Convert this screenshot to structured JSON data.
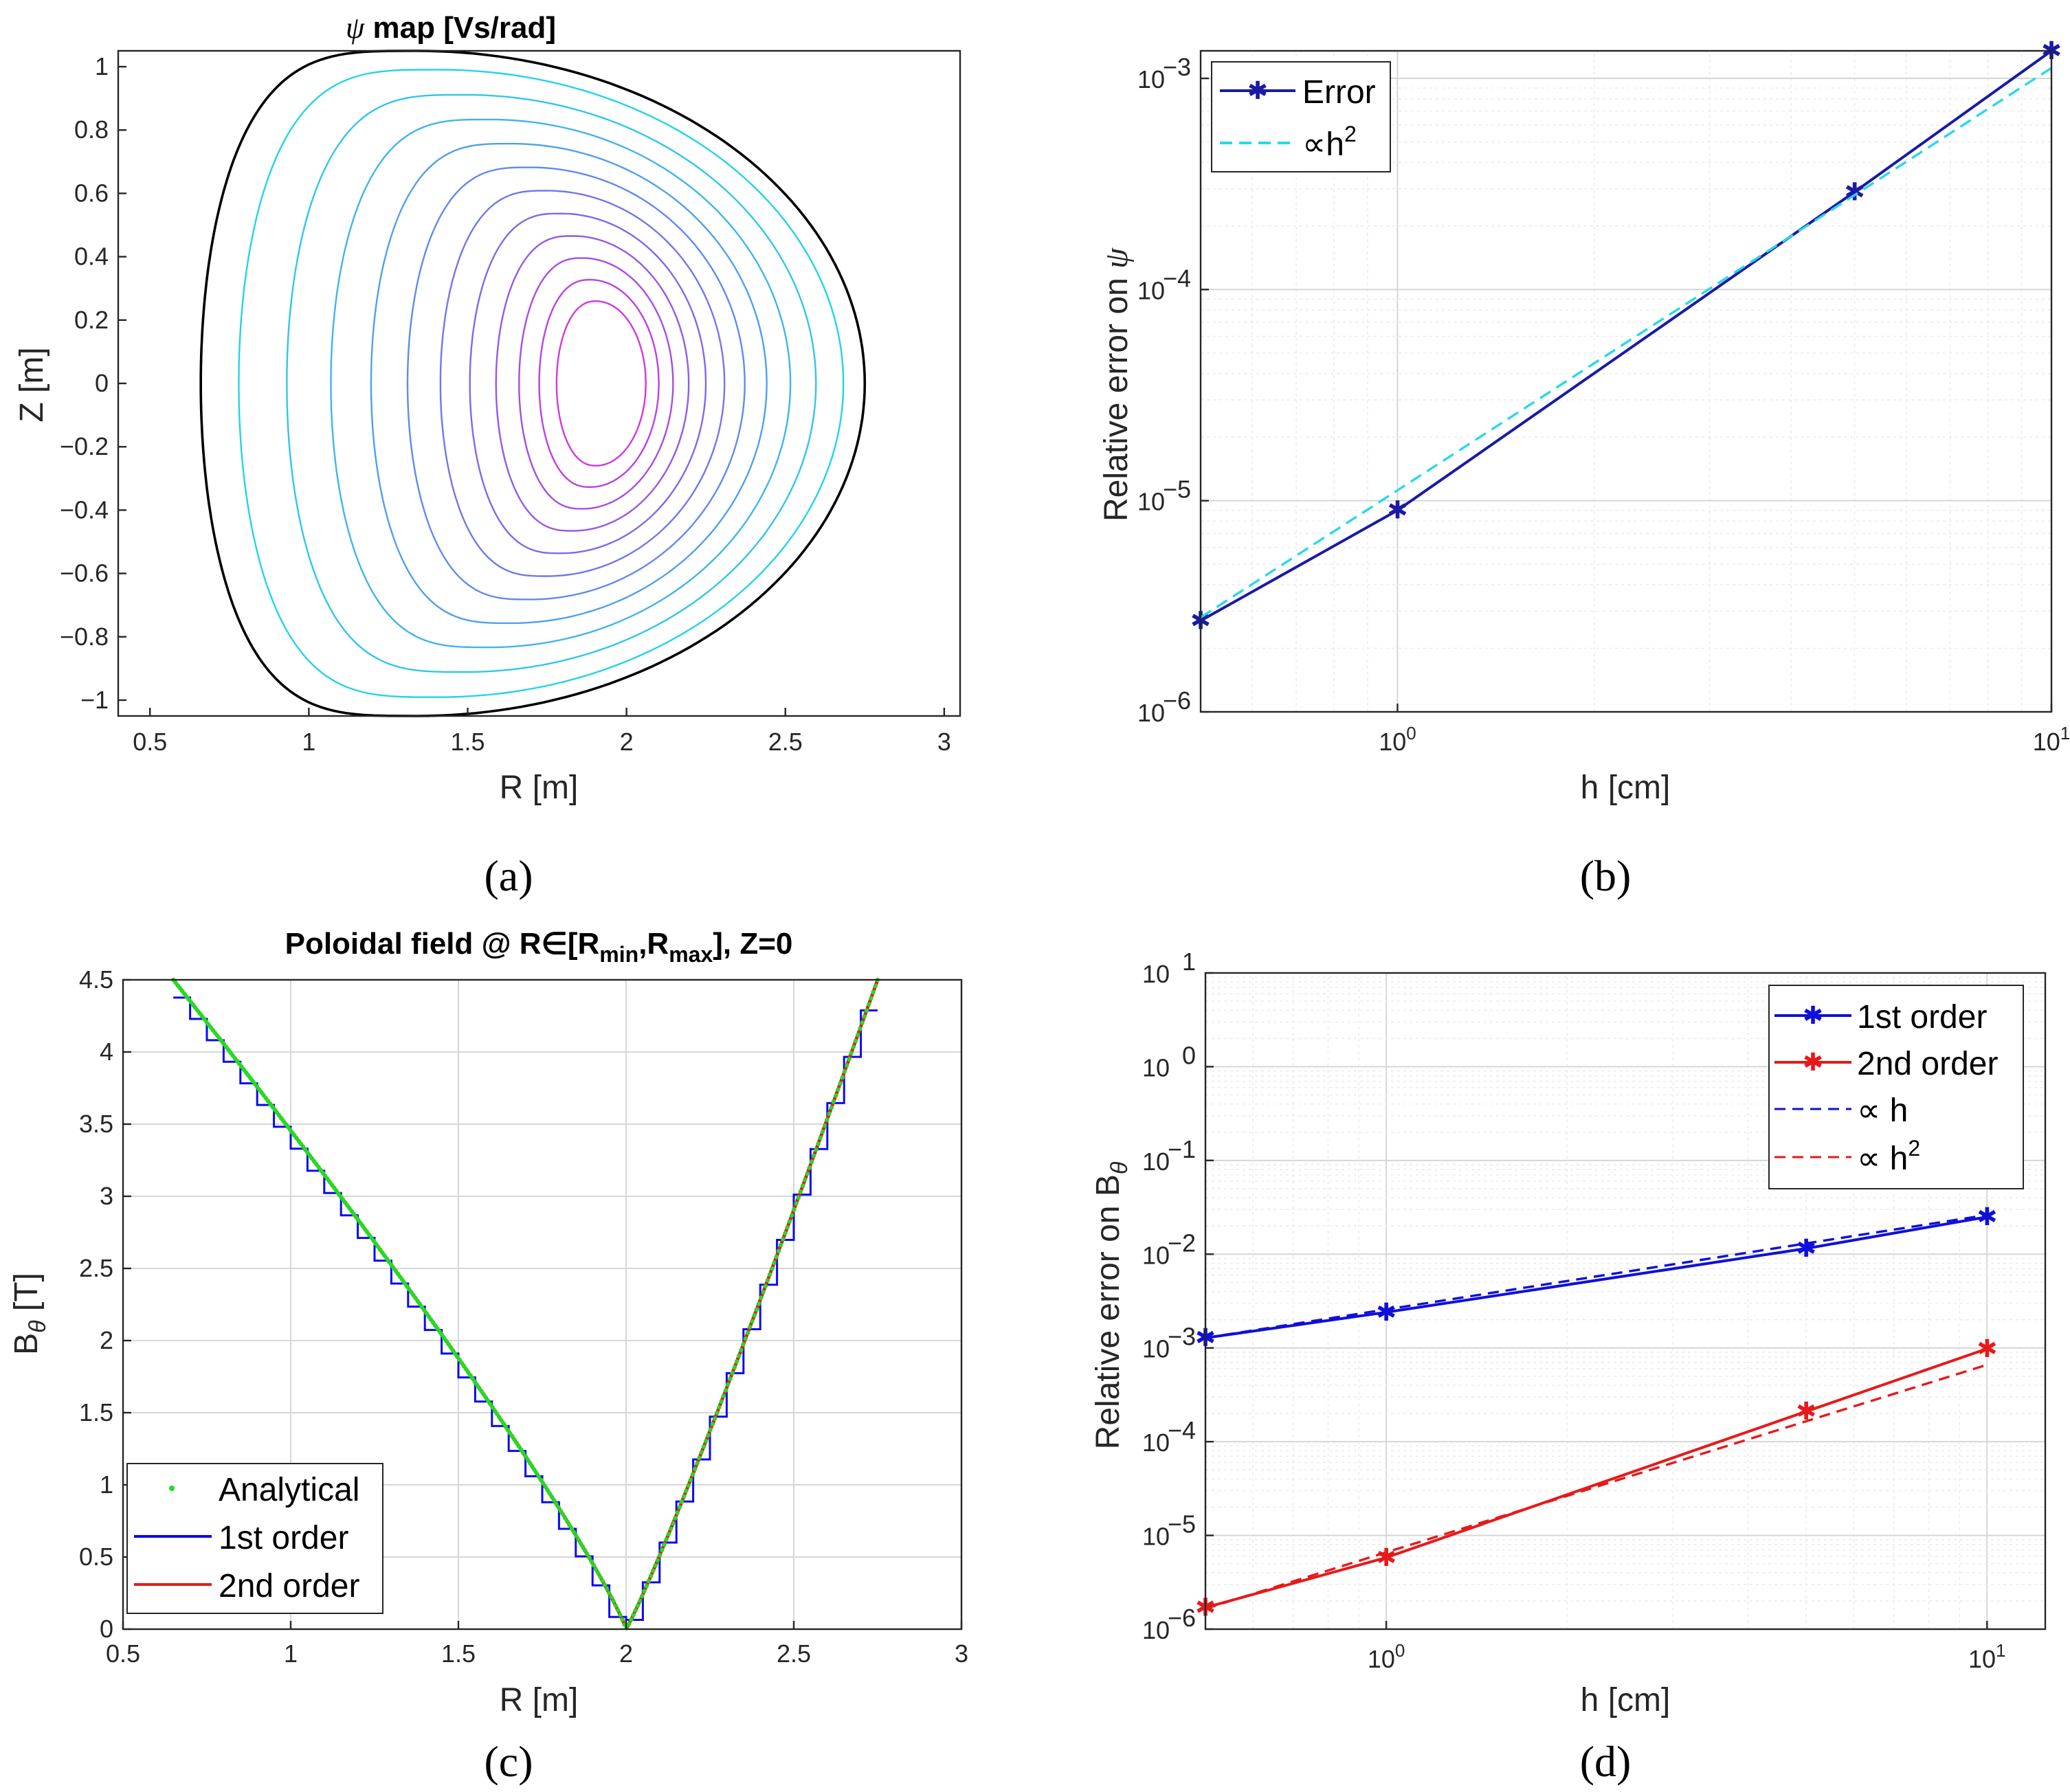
{
  "chart_data": [
    {
      "id": "a",
      "type": "contour",
      "panel_label": "(a)",
      "title_prefix": "ψ",
      "title": "map [Vs/rad]",
      "xlabel": "R [m]",
      "ylabel": "Z [m]",
      "xlim": [
        0.4,
        3.05
      ],
      "ylim": [
        -1.05,
        1.05
      ],
      "xticks": [
        0.5,
        1,
        1.5,
        2,
        2.5,
        3
      ],
      "xtick_labels": [
        "0.5",
        "1",
        "1.5",
        "2",
        "2.5",
        "3"
      ],
      "yticks": [
        -1,
        -0.8,
        -0.6,
        -0.4,
        -0.2,
        0,
        0.2,
        0.4,
        0.6,
        0.8,
        1
      ],
      "ytick_labels": [
        "−1",
        "−0.8",
        "−0.6",
        "−0.4",
        "−0.2",
        "0",
        "0.2",
        "0.4",
        "0.6",
        "0.8",
        "1"
      ],
      "boundary": {
        "r_inner": 0.66,
        "r_outer": 2.75,
        "r_top": 1.34,
        "z_top": 1.05,
        "r_bottom": 1.34,
        "z_bottom": -1.05
      },
      "axis_center": {
        "r": 1.93,
        "z": 0.0
      },
      "contour_levels": 11,
      "contour_colors": [
        "#22d4e6",
        "#30c6ea",
        "#40b4ec",
        "#509fee",
        "#608aee",
        "#7276ec",
        "#8466ea",
        "#9658e8",
        "#a84ce6",
        "#bc40e4",
        "#d238de"
      ]
    },
    {
      "id": "b",
      "type": "line",
      "scale": "loglog",
      "panel_label": "(b)",
      "xlabel": "h [cm]",
      "ylabel_prefix": "Relative error on",
      "ylabel_symbol": "ψ",
      "xlim": [
        0.5,
        10
      ],
      "ylim": [
        1e-06,
        0.00135
      ],
      "xticks": [
        1,
        10
      ],
      "xtick_bases": [
        "10",
        "10"
      ],
      "xtick_exps": [
        "0",
        "1"
      ],
      "yticks": [
        1e-06,
        1e-05,
        0.0001,
        0.001
      ],
      "ytick_bases": [
        "10",
        "10",
        "10",
        "10"
      ],
      "ytick_exps": [
        "−6",
        "−5",
        "−4",
        "−3"
      ],
      "series": [
        {
          "name": "Error",
          "x": [
            0.5,
            1,
            5,
            10
          ],
          "y": [
            2.7e-06,
            9e-06,
            0.00029,
            0.00135
          ],
          "color": "#1a1aa6",
          "dash": "",
          "marker": "star"
        },
        {
          "name": "h²",
          "x": [
            0.5,
            10
          ],
          "y": [
            2.8e-06,
            0.00112
          ],
          "color": "#28d9e8",
          "dash": "18 10",
          "marker": ""
        }
      ],
      "legend": [
        {
          "label": "Error"
        },
        {
          "prefix": "∝",
          "label": "h",
          "sup": "2"
        }
      ]
    },
    {
      "id": "c",
      "type": "line",
      "panel_label": "(c)",
      "title_main": "Poloidal field @ R∈[R",
      "title_sub1": "min",
      "title_mid": ",R",
      "title_sub2": "max",
      "title_end": "], Z=0",
      "xlabel": "R [m]",
      "ylabel_base": "B",
      "ylabel_sub": "θ",
      "ylabel_unit": "[T]",
      "xlim": [
        0.5,
        3
      ],
      "ylim": [
        0,
        4.5
      ],
      "xticks": [
        0.5,
        1,
        1.5,
        2,
        2.5,
        3
      ],
      "xtick_labels": [
        "0.5",
        "1",
        "1.5",
        "2",
        "2.5",
        "3"
      ],
      "yticks": [
        0,
        0.5,
        1,
        1.5,
        2,
        2.5,
        3,
        3.5,
        4,
        4.5
      ],
      "ytick_labels": [
        "0",
        "0.5",
        "1",
        "1.5",
        "2",
        "2.5",
        "3",
        "3.5",
        "4",
        "4.5"
      ],
      "series": [
        {
          "name": "Analytical",
          "color": "#22dd22",
          "style": "dots"
        },
        {
          "name": "1st order",
          "color": "#0a0af0",
          "style": "line"
        },
        {
          "name": "2nd order",
          "color": "#e81c1c",
          "style": "line"
        }
      ],
      "curve": {
        "r_start": 0.65,
        "r_zero": 2.0,
        "r_end": 2.75,
        "b_start": 4.5,
        "b_end": 4.5,
        "step": 0.05
      }
    },
    {
      "id": "d",
      "type": "line",
      "scale": "loglog",
      "panel_label": "(d)",
      "xlabel": "h [cm]",
      "ylabel_prefix": "Relative error on B",
      "ylabel_sub": "θ",
      "xlim": [
        0.5,
        12.5
      ],
      "ylim": [
        1e-06,
        10
      ],
      "xticks": [
        1,
        10
      ],
      "xtick_bases": [
        "10",
        "10"
      ],
      "xtick_exps": [
        "0",
        "1"
      ],
      "yticks": [
        1e-06,
        1e-05,
        0.0001,
        0.001,
        0.01,
        0.1,
        1,
        10
      ],
      "ytick_bases": [
        "10",
        "10",
        "10",
        "10",
        "10",
        "10",
        "10",
        "10"
      ],
      "ytick_exps": [
        "−6",
        "−5",
        "−4",
        "−3",
        "−2",
        "−1",
        "0",
        "1"
      ],
      "series": [
        {
          "name": "1st order",
          "x": [
            0.5,
            1,
            5,
            10
          ],
          "y": [
            0.00128,
            0.0024,
            0.0115,
            0.025
          ],
          "color": "#1010d8",
          "dash": "",
          "marker": "star"
        },
        {
          "name": "2nd order",
          "x": [
            0.5,
            1,
            5,
            10
          ],
          "y": [
            1.7e-06,
            5.8e-06,
            0.00021,
            0.00098
          ],
          "color": "#e61a1a",
          "dash": "",
          "marker": "star"
        },
        {
          "name": "h",
          "x": [
            0.5,
            10
          ],
          "y": [
            0.00128,
            0.0262
          ],
          "color": "#1010d8",
          "dash": "16 10",
          "marker": ""
        },
        {
          "name": "h²",
          "x": [
            0.5,
            10
          ],
          "y": [
            1.65e-06,
            0.00066
          ],
          "color": "#e61a1a",
          "dash": "16 10",
          "marker": ""
        }
      ],
      "legend": [
        {
          "label": "1st order"
        },
        {
          "label": "2nd order"
        },
        {
          "prefix": "∝",
          "label": "h",
          "sup": ""
        },
        {
          "prefix": "∝",
          "label": "h",
          "sup": "2"
        }
      ]
    }
  ]
}
